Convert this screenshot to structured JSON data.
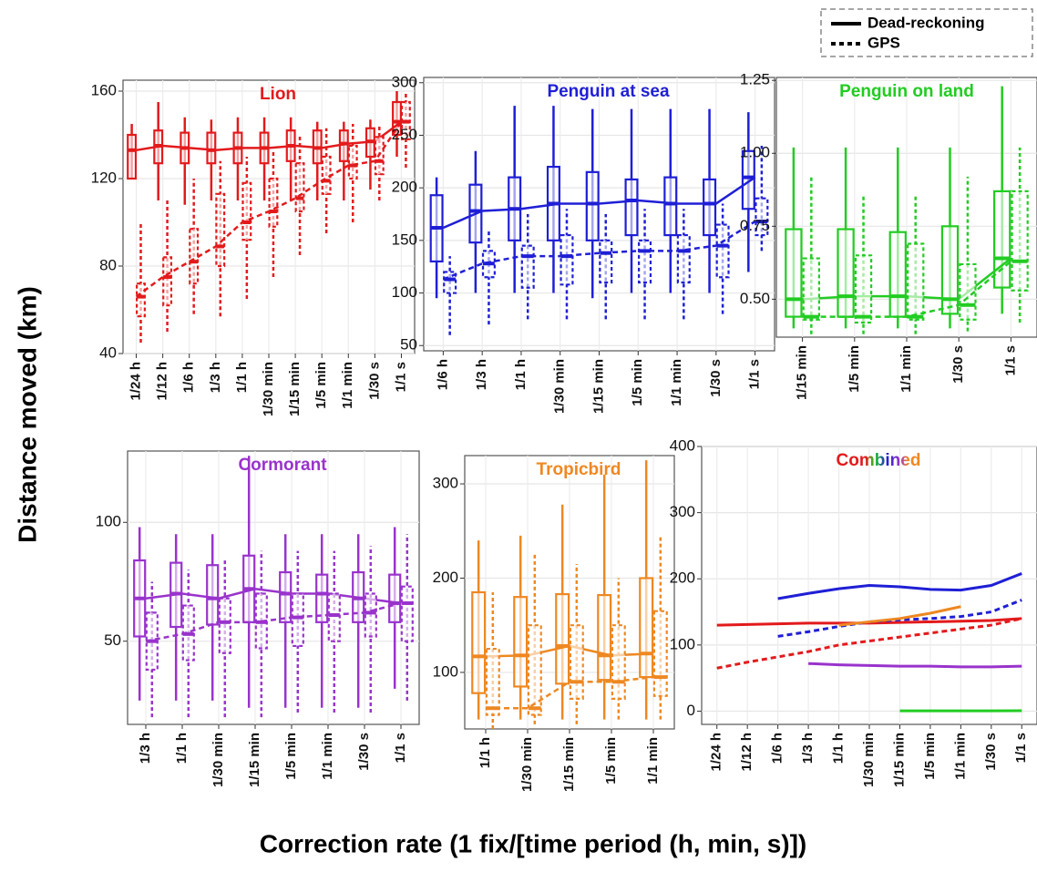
{
  "y_axis_label": "Distance moved (km)",
  "x_axis_label": "Correction rate (1 fix/[time period (h, min, s)])",
  "legend": [
    {
      "label": "Dead-reckoning",
      "dash": false
    },
    {
      "label": "GPS",
      "dash": true
    }
  ],
  "chart_data": [
    {
      "type": "box",
      "title": "Lion",
      "color": "#e31a1c",
      "categories": [
        "1/24 h",
        "1/12 h",
        "1/6 h",
        "1/3 h",
        "1/1 h",
        "1/30 min",
        "1/15 min",
        "1/5 min",
        "1/1 min",
        "1/30 s",
        "1/1 s"
      ],
      "ylim": [
        40,
        165
      ],
      "yticks": [
        40,
        80,
        120,
        160
      ],
      "series": [
        {
          "dash": false,
          "median": [
            133,
            135,
            134,
            133,
            134,
            134,
            135,
            134,
            136,
            137,
            146
          ],
          "q1": [
            120,
            127,
            127,
            127,
            127,
            127,
            128,
            127,
            128,
            130,
            140
          ],
          "q3": [
            140,
            142,
            141,
            141,
            141,
            141,
            142,
            142,
            142,
            143,
            155
          ],
          "low": [
            120,
            110,
            108,
            110,
            110,
            110,
            110,
            110,
            110,
            115,
            130
          ],
          "high": [
            145,
            155,
            148,
            147,
            148,
            148,
            148,
            146,
            146,
            147,
            160
          ]
        },
        {
          "dash": true,
          "median": [
            66,
            75,
            82,
            89,
            100,
            105,
            111,
            119,
            126,
            128,
            146
          ],
          "q1": [
            57,
            62,
            72,
            80,
            92,
            98,
            105,
            113,
            120,
            122,
            138
          ],
          "q3": [
            72,
            84,
            97,
            113,
            118,
            120,
            127,
            130,
            135,
            139,
            155
          ],
          "low": [
            45,
            50,
            58,
            57,
            65,
            75,
            85,
            95,
            100,
            110,
            125
          ],
          "high": [
            100,
            110,
            120,
            128,
            130,
            133,
            140,
            143,
            145,
            145,
            160
          ]
        }
      ]
    },
    {
      "type": "box",
      "title": "Penguin at sea",
      "color": "#1f1fd6",
      "categories": [
        "1/6 h",
        "1/3 h",
        "1/1 h",
        "1/30 min",
        "1/15 min",
        "1/5 min",
        "1/1 min",
        "1/30 s",
        "1/1 s"
      ],
      "ylim": [
        45,
        305
      ],
      "yticks": [
        50,
        100,
        150,
        200,
        250,
        300
      ],
      "series": [
        {
          "dash": false,
          "median": [
            162,
            178,
            180,
            185,
            185,
            188,
            185,
            185,
            210
          ],
          "q1": [
            130,
            148,
            150,
            150,
            150,
            155,
            155,
            155,
            180
          ],
          "q3": [
            193,
            203,
            210,
            220,
            215,
            208,
            210,
            208,
            235
          ],
          "low": [
            95,
            100,
            100,
            100,
            95,
            100,
            100,
            100,
            120
          ],
          "high": [
            210,
            235,
            278,
            278,
            275,
            275,
            275,
            275,
            272
          ]
        },
        {
          "dash": true,
          "median": [
            113,
            128,
            135,
            135,
            138,
            140,
            140,
            145,
            168
          ],
          "q1": [
            100,
            115,
            105,
            108,
            110,
            110,
            110,
            115,
            155
          ],
          "q3": [
            120,
            140,
            145,
            155,
            150,
            150,
            155,
            165,
            190
          ],
          "low": [
            60,
            70,
            75,
            75,
            75,
            75,
            75,
            80,
            140
          ],
          "high": [
            135,
            160,
            175,
            180,
            175,
            180,
            180,
            185,
            240
          ]
        }
      ]
    },
    {
      "type": "box",
      "title": "Penguin on land",
      "color": "#22cc22",
      "categories": [
        "1/15 min",
        "1/5 min",
        "1/1 min",
        "1/30 s",
        "1/1 s"
      ],
      "ylim": [
        0.37,
        1.26
      ],
      "yticks": [
        {
          "value": 0.5,
          "label": "0.50"
        },
        {
          "value": 0.75,
          "label": "0.75"
        },
        {
          "value": 1,
          "label": "1.00"
        },
        {
          "value": 1.25,
          "label": "1.25"
        }
      ],
      "series": [
        {
          "dash": false,
          "median": [
            0.5,
            0.51,
            0.51,
            0.5,
            0.64
          ],
          "q1": [
            0.44,
            0.44,
            0.44,
            0.45,
            0.54
          ],
          "q3": [
            0.74,
            0.74,
            0.73,
            0.75,
            0.87
          ],
          "low": [
            0.4,
            0.4,
            0.4,
            0.4,
            0.45
          ],
          "high": [
            1.02,
            1.02,
            1.02,
            1.02,
            1.23
          ]
        },
        {
          "dash": true,
          "median": [
            0.44,
            0.44,
            0.44,
            0.48,
            0.63
          ],
          "q1": [
            0.43,
            0.42,
            0.43,
            0.43,
            0.53
          ],
          "q3": [
            0.64,
            0.65,
            0.69,
            0.62,
            0.87
          ],
          "low": [
            0.38,
            0.38,
            0.38,
            0.39,
            0.42
          ],
          "high": [
            0.92,
            0.86,
            0.86,
            0.92,
            1.02
          ]
        }
      ]
    },
    {
      "type": "box",
      "title": "Cormorant",
      "color": "#9933cc",
      "categories": [
        "1/3 h",
        "1/1 h",
        "1/30 min",
        "1/15 min",
        "1/5 min",
        "1/1 min",
        "1/30 s",
        "1/1 s"
      ],
      "ylim": [
        15,
        130
      ],
      "yticks": [
        50,
        100
      ],
      "series": [
        {
          "dash": false,
          "median": [
            68,
            70,
            68,
            72,
            70,
            70,
            68,
            66
          ],
          "q1": [
            52,
            56,
            57,
            58,
            58,
            58,
            58,
            58
          ],
          "q3": [
            84,
            83,
            82,
            86,
            79,
            78,
            79,
            78
          ],
          "low": [
            25,
            25,
            25,
            22,
            22,
            22,
            22,
            30
          ],
          "high": [
            98,
            95,
            95,
            128,
            95,
            95,
            95,
            98
          ]
        },
        {
          "dash": true,
          "median": [
            50,
            53,
            58,
            58,
            60,
            61,
            62,
            66
          ],
          "q1": [
            38,
            42,
            45,
            47,
            48,
            50,
            52,
            50
          ],
          "q3": [
            62,
            65,
            68,
            70,
            70,
            70,
            70,
            73
          ],
          "low": [
            18,
            18,
            18,
            18,
            20,
            20,
            20,
            25
          ],
          "high": [
            75,
            80,
            85,
            88,
            88,
            88,
            90,
            95
          ]
        }
      ]
    },
    {
      "type": "box",
      "title": "Tropicbird",
      "color": "#ee8822",
      "categories": [
        "1/1 h",
        "1/30 min",
        "1/15 min",
        "1/5 min",
        "1/1 min"
      ],
      "ylim": [
        40,
        330
      ],
      "yticks": [
        100,
        200,
        300
      ],
      "series": [
        {
          "dash": false,
          "median": [
            117,
            118,
            128,
            118,
            120
          ],
          "q1": [
            78,
            85,
            88,
            92,
            95
          ],
          "q3": [
            185,
            180,
            183,
            182,
            200
          ],
          "low": [
            50,
            50,
            50,
            50,
            50
          ],
          "high": [
            240,
            245,
            278,
            310,
            325
          ]
        },
        {
          "dash": true,
          "median": [
            62,
            62,
            90,
            90,
            95
          ],
          "q1": [
            55,
            55,
            72,
            72,
            75
          ],
          "q3": [
            125,
            150,
            150,
            150,
            165
          ],
          "low": [
            40,
            45,
            45,
            50,
            50
          ],
          "high": [
            185,
            225,
            215,
            200,
            245
          ]
        }
      ]
    },
    {
      "type": "line",
      "title": "Combined",
      "categories": [
        "1/24 h",
        "1/12 h",
        "1/6 h",
        "1/3 h",
        "1/1 h",
        "1/30 min",
        "1/15 min",
        "1/5 min",
        "1/1 min",
        "1/30 s",
        "1/1 s"
      ],
      "ylim": [
        -20,
        400
      ],
      "yticks": [
        0,
        100,
        200,
        300,
        400
      ],
      "series": [
        {
          "color": "#e31a1c",
          "dash": false,
          "values": [
            130,
            131,
            132,
            133,
            133,
            133,
            134,
            135,
            136,
            137,
            140
          ]
        },
        {
          "color": "#e31a1c",
          "dash": true,
          "values": [
            65,
            74,
            82,
            90,
            100,
            106,
            112,
            118,
            124,
            130,
            140
          ]
        },
        {
          "color": "#1f1fd6",
          "dash": false,
          "values": [
            null,
            null,
            170,
            178,
            185,
            190,
            188,
            184,
            183,
            190,
            208
          ]
        },
        {
          "color": "#1f1fd6",
          "dash": true,
          "values": [
            null,
            null,
            113,
            120,
            128,
            135,
            138,
            140,
            143,
            150,
            168
          ]
        },
        {
          "color": "#ee8822",
          "dash": false,
          "values": [
            null,
            null,
            null,
            null,
            130,
            135,
            140,
            148,
            158,
            null,
            null
          ]
        },
        {
          "color": "#9933cc",
          "dash": false,
          "values": [
            null,
            null,
            null,
            72,
            70,
            69,
            68,
            68,
            67,
            67,
            68
          ]
        },
        {
          "color": "#22cc22",
          "dash": false,
          "values": [
            null,
            null,
            null,
            null,
            null,
            null,
            0.5,
            0.5,
            0.5,
            0.5,
            0.64
          ]
        }
      ]
    }
  ]
}
